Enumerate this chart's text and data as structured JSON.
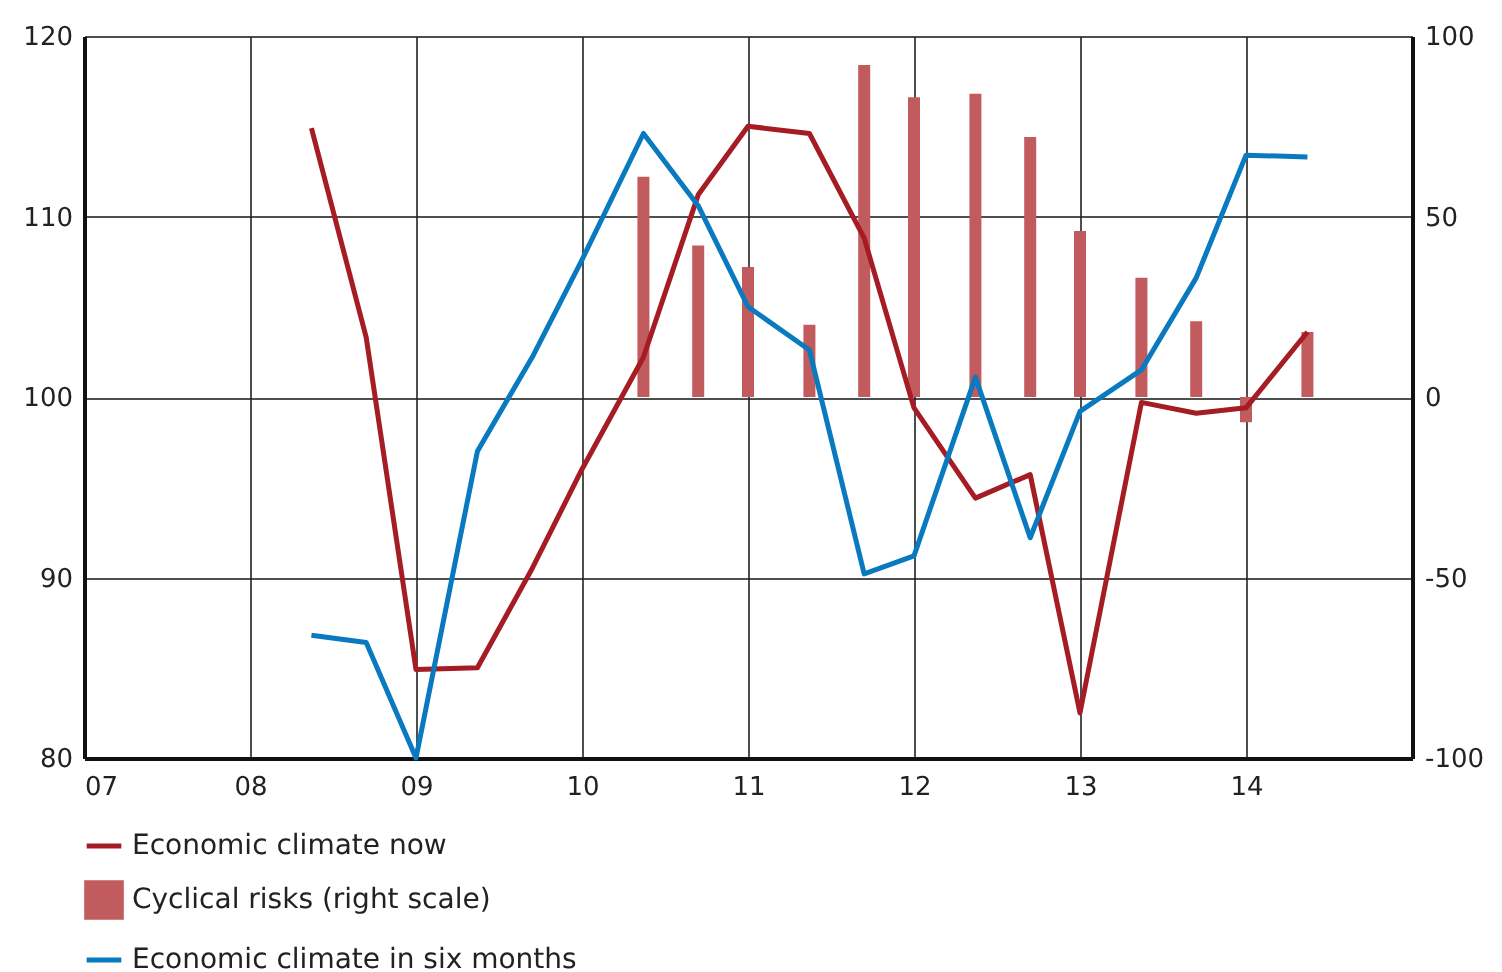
{
  "chart_data": {
    "type": "line",
    "xlim": [
      2007,
      2015
    ],
    "xticks": [
      {
        "value": 2007,
        "label": "07"
      },
      {
        "value": 2008,
        "label": "08"
      },
      {
        "value": 2009,
        "label": "09"
      },
      {
        "value": 2010,
        "label": "10"
      },
      {
        "value": 2011,
        "label": "11"
      },
      {
        "value": 2012,
        "label": "12"
      },
      {
        "value": 2013,
        "label": "13"
      },
      {
        "value": 2014,
        "label": "14"
      }
    ],
    "ylim": [
      80,
      120
    ],
    "yticks": [
      80,
      90,
      100,
      110,
      120
    ],
    "y2lim": [
      -100,
      100
    ],
    "y2ticks": [
      -100,
      -50,
      0,
      50,
      100
    ],
    "grid": true,
    "legend": "bottom",
    "x": [
      2008.37,
      2008.7,
      2009.0,
      2009.37,
      2009.7,
      2010.0,
      2010.37,
      2010.7,
      2011.0,
      2011.37,
      2011.7,
      2012.0,
      2012.37,
      2012.7,
      2013.0,
      2013.37,
      2013.7,
      2014.0,
      2014.37
    ],
    "series": [
      {
        "name": "Economic climate now",
        "color": "#a51c24",
        "values": [
          114.9,
          103.3,
          84.9,
          85.0,
          90.5,
          96.0,
          102.2,
          111.2,
          115.0,
          114.6,
          108.8,
          99.4,
          94.4,
          95.7,
          82.5,
          99.7,
          99.1,
          99.4,
          103.6
        ]
      },
      {
        "name": "Cyclical risks (right scale)",
        "type": "bar",
        "axis": "y2",
        "color": "#c25b5e",
        "x": [
          2010.37,
          2010.7,
          2011.0,
          2011.37,
          2011.7,
          2012.0,
          2012.37,
          2012.7,
          2013.0,
          2013.37,
          2013.7,
          2014.0,
          2014.37
        ],
        "values": [
          61,
          42,
          36,
          20,
          92,
          83,
          84,
          72,
          46,
          33,
          21,
          -7,
          18
        ]
      },
      {
        "name": "Economic climate in six months",
        "color": "#0a7ac0",
        "values": [
          86.8,
          86.4,
          80.0,
          97.0,
          102.2,
          107.6,
          114.6,
          110.6,
          105.0,
          102.6,
          90.2,
          91.2,
          101.1,
          92.2,
          99.2,
          101.5,
          106.6,
          113.4,
          113.3
        ]
      }
    ]
  }
}
